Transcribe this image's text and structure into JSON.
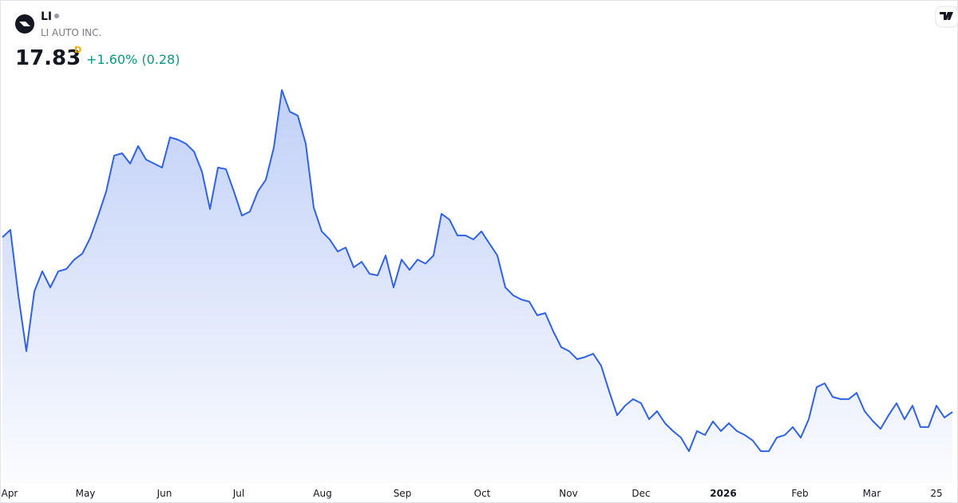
{
  "header": {
    "symbol": "LI",
    "company": "LI AUTO INC.",
    "price": "17.83",
    "interval": "D",
    "change": "+1.60% (0.28)"
  },
  "chart_data": {
    "type": "area",
    "color": "#2f62e6",
    "ylim": [
      15,
      31.5
    ],
    "xticks": [
      {
        "value": 0.8,
        "label": "Apr"
      },
      {
        "value": 10.4,
        "label": "May"
      },
      {
        "value": 20.3,
        "label": "Jun"
      },
      {
        "value": 29.6,
        "label": "Jul"
      },
      {
        "value": 40.1,
        "label": "Aug"
      },
      {
        "value": 50.1,
        "label": "Sep"
      },
      {
        "value": 60.1,
        "label": "Oct"
      },
      {
        "value": 70.9,
        "label": "Nov"
      },
      {
        "value": 80,
        "label": "Dec"
      },
      {
        "value": 90.3,
        "label": "2026"
      },
      {
        "value": 99.9,
        "label": "Feb"
      },
      {
        "value": 108.9,
        "label": "Mar"
      },
      {
        "value": 117,
        "label": "25"
      }
    ],
    "values": [
      24.79,
      25.08,
      22.47,
      20.25,
      22.63,
      23.43,
      22.79,
      23.43,
      23.52,
      23.9,
      24.13,
      24.76,
      25.65,
      26.61,
      28.04,
      28.13,
      27.72,
      28.42,
      27.88,
      27.72,
      27.56,
      28.77,
      28.67,
      28.51,
      28.2,
      27.4,
      25.91,
      27.56,
      27.5,
      26.61,
      25.65,
      25.81,
      26.61,
      27.08,
      28.36,
      30.65,
      29.79,
      29.63,
      28.51,
      25.97,
      25.02,
      24.7,
      24.22,
      24.38,
      23.59,
      23.81,
      23.33,
      23.27,
      24.06,
      22.79,
      23.9,
      23.49,
      23.9,
      23.74,
      24.06,
      25.72,
      25.49,
      24.86,
      24.86,
      24.7,
      25.02,
      24.54,
      24.06,
      22.79,
      22.47,
      22.31,
      22.22,
      21.68,
      21.77,
      21.04,
      20.41,
      20.25,
      19.93,
      20.02,
      20.15,
      19.67,
      18.66,
      17.7,
      18.08,
      18.34,
      18.18,
      17.54,
      17.86,
      17.38,
      17.07,
      16.81,
      16.27,
      17.07,
      16.91,
      17.45,
      17.07,
      17.38,
      17.07,
      16.91,
      16.69,
      16.27,
      16.27,
      16.81,
      16.91,
      17.23,
      16.81,
      17.54,
      18.82,
      18.97,
      18.43,
      18.34,
      18.34,
      18.59,
      17.86,
      17.48,
      17.16,
      17.7,
      18.18,
      17.54,
      18.08,
      17.23,
      17.23,
      18.08,
      17.61,
      17.83
    ]
  }
}
